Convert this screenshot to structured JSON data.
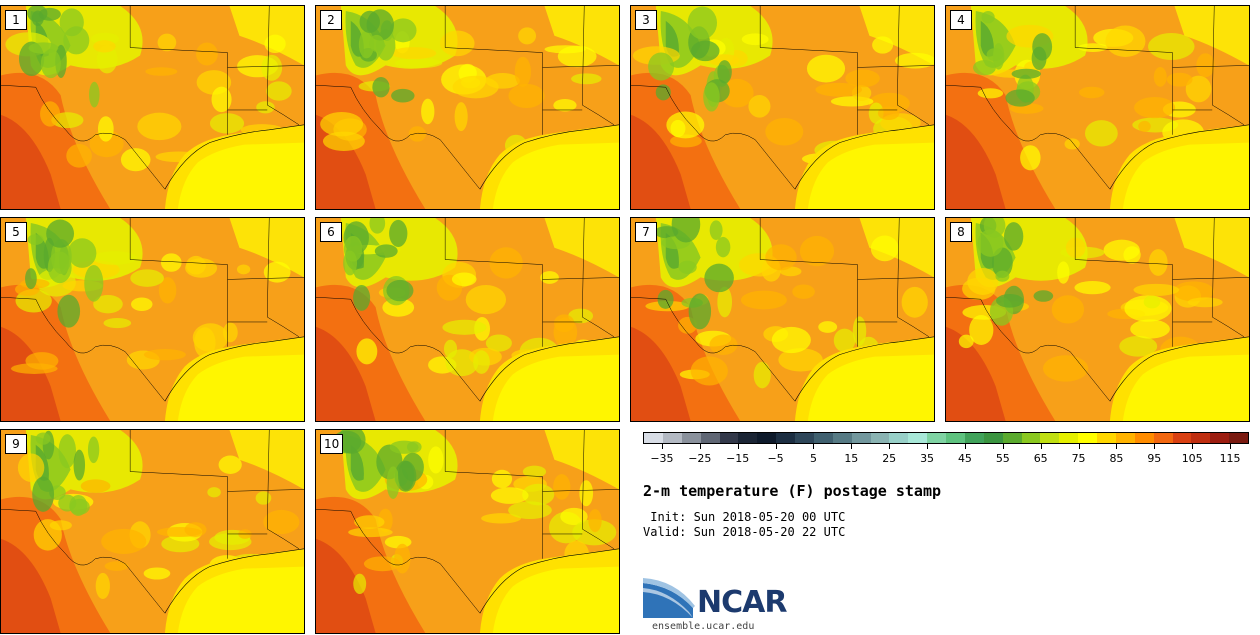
{
  "panels": [
    {
      "label": "1"
    },
    {
      "label": "2"
    },
    {
      "label": "3"
    },
    {
      "label": "4"
    },
    {
      "label": "5"
    },
    {
      "label": "6"
    },
    {
      "label": "7"
    },
    {
      "label": "8"
    },
    {
      "label": "9"
    },
    {
      "label": "10"
    }
  ],
  "colorbar": {
    "colors": [
      "#d8dde6",
      "#b3b9c3",
      "#8a919c",
      "#5f6674",
      "#33394a",
      "#1b2535",
      "#0e1a2b",
      "#1c2e42",
      "#2e4659",
      "#40606f",
      "#567a84",
      "#72979d",
      "#8ab3b2",
      "#98d0c8",
      "#a8e8d8",
      "#7fd3a3",
      "#5ec27f",
      "#40a25a",
      "#3a9440",
      "#5aaa2e",
      "#8ac820",
      "#c0df12",
      "#e5f000",
      "#ffff00",
      "#ffd700",
      "#ffb300",
      "#ff8c00",
      "#f26710",
      "#d94012",
      "#bf2e10",
      "#9c1d10",
      "#7a1a10"
    ],
    "ticks": [
      "−35",
      "−25",
      "−15",
      "−5",
      "5",
      "15",
      "25",
      "35",
      "45",
      "55",
      "65",
      "75",
      "85",
      "95",
      "105",
      "115"
    ],
    "range": [
      -40,
      120
    ]
  },
  "title": "2-m temperature (F) postage stamp",
  "init": " Init: Sun 2018-05-20 00 UTC",
  "valid": "Valid: Sun 2018-05-20 22 UTC",
  "logo": {
    "text": "NCAR",
    "url": "ensemble.ucar.edu"
  }
}
